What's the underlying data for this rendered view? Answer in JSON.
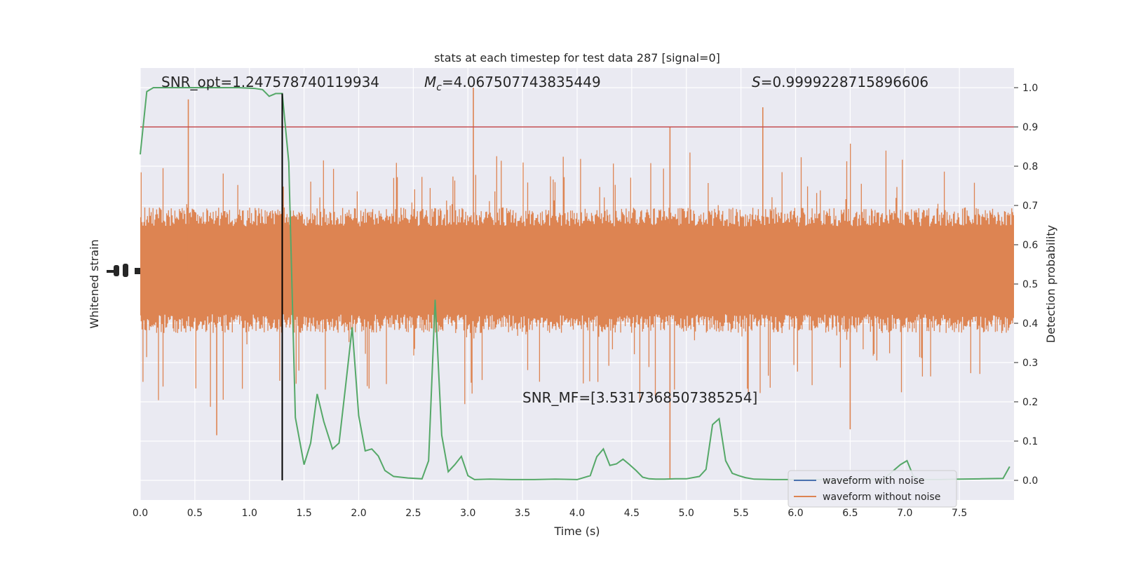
{
  "chart_data": {
    "type": "line",
    "title": "stats at each timestep for test data 287 [signal=0]",
    "xlabel": "Time (s)",
    "ylabel_left": "Whitened strain",
    "ylabel_right": "Detection probability",
    "xlim": [
      0.0,
      8.0
    ],
    "ylim_right": [
      -0.05,
      1.05
    ],
    "x_ticks": [
      "0.0",
      "0.5",
      "1.0",
      "1.5",
      "2.0",
      "2.5",
      "3.0",
      "3.5",
      "4.0",
      "4.5",
      "5.0",
      "5.5",
      "6.0",
      "6.5",
      "7.0",
      "7.5"
    ],
    "y_right_ticks": [
      "0.0",
      "0.1",
      "0.2",
      "0.3",
      "0.4",
      "0.5",
      "0.6",
      "0.7",
      "0.8",
      "0.9",
      "1.0"
    ],
    "grid": true,
    "legend_position": "lower-right",
    "colors": {
      "waveform_with_noise": "#4c72b0",
      "waveform_without_noise": "#dd8452",
      "detection_probability": "#55a868",
      "threshold": "#c44e52",
      "marker": "#000000",
      "background": "#eaeaf2"
    },
    "annotations": {
      "snr_opt": "SNR_opt=1.247578740119934",
      "mc_symbol": "M",
      "mc_sub": "c",
      "mc_value": "=4.067507743835449",
      "s_symbol": "S",
      "s_value": "=0.9999228715896606",
      "snr_mf": "SNR_MF=[3.5317368507385254]"
    },
    "legend": [
      {
        "label": "waveform with noise",
        "color": "#4c72b0"
      },
      {
        "label": "waveform without noise",
        "color": "#dd8452"
      }
    ],
    "threshold": 0.9,
    "marker_time": 1.3,
    "series": [
      {
        "name": "detection probability",
        "color": "#55a868",
        "x": [
          0.0,
          0.06,
          0.12,
          0.3,
          0.6,
          0.9,
          1.05,
          1.12,
          1.18,
          1.24,
          1.3,
          1.36,
          1.42,
          1.5,
          1.56,
          1.62,
          1.68,
          1.76,
          1.82,
          1.88,
          1.94,
          2.0,
          2.06,
          2.12,
          2.18,
          2.24,
          2.32,
          2.45,
          2.58,
          2.64,
          2.7,
          2.76,
          2.82,
          2.88,
          2.94,
          3.0,
          3.06,
          3.2,
          3.4,
          3.6,
          3.8,
          4.0,
          4.12,
          4.18,
          4.24,
          4.3,
          4.36,
          4.42,
          4.48,
          4.54,
          4.6,
          4.66,
          4.72,
          4.8,
          4.9,
          5.0,
          5.12,
          5.18,
          5.24,
          5.3,
          5.36,
          5.42,
          5.48,
          5.54,
          5.62,
          5.8,
          6.0,
          6.2,
          6.4,
          6.6,
          6.8,
          6.96,
          7.02,
          7.08,
          7.14,
          7.2,
          7.32,
          7.5,
          7.7,
          7.9,
          7.96
        ],
        "y": [
          0.83,
          0.99,
          1.0,
          1.0,
          1.0,
          1.0,
          0.998,
          0.995,
          0.978,
          0.985,
          0.985,
          0.81,
          0.16,
          0.04,
          0.095,
          0.22,
          0.15,
          0.08,
          0.095,
          0.24,
          0.39,
          0.165,
          0.075,
          0.08,
          0.062,
          0.025,
          0.01,
          0.006,
          0.004,
          0.05,
          0.46,
          0.115,
          0.022,
          0.04,
          0.061,
          0.012,
          0.002,
          0.003,
          0.002,
          0.002,
          0.003,
          0.002,
          0.012,
          0.06,
          0.08,
          0.038,
          0.042,
          0.054,
          0.04,
          0.025,
          0.008,
          0.004,
          0.003,
          0.003,
          0.004,
          0.004,
          0.01,
          0.028,
          0.142,
          0.157,
          0.05,
          0.018,
          0.012,
          0.007,
          0.003,
          0.002,
          0.002,
          0.002,
          0.002,
          0.003,
          0.002,
          0.04,
          0.05,
          0.01,
          0.003,
          0.002,
          0.002,
          0.003,
          0.004,
          0.005,
          0.035
        ]
      },
      {
        "name": "waveform without noise",
        "color": "#dd8452",
        "type": "noise-band",
        "band_center": 0.535,
        "band_half_width": 0.16
      }
    ]
  }
}
